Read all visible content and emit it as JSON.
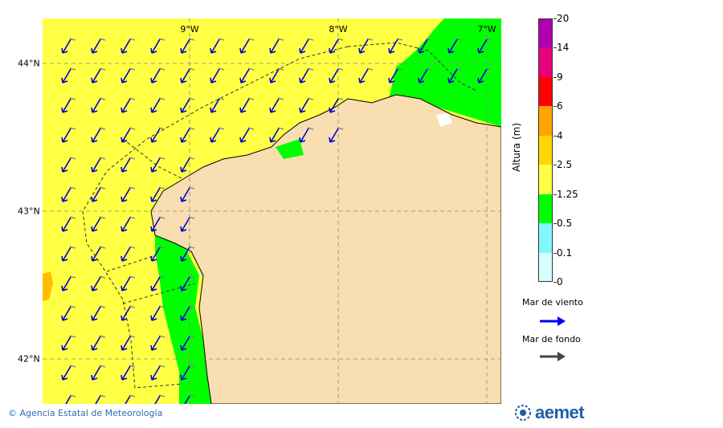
{
  "map": {
    "lon_labels": [
      "9°W",
      "8°W",
      "7°W"
    ],
    "lat_labels": [
      "44°N",
      "43°N",
      "42°N"
    ],
    "colors": {
      "sea_yellow": "#ffff44",
      "sea_green": "#00ff00",
      "sea_light_blue": "#80f8ff",
      "land": "#f8deb0",
      "orange_patch": "#ffbf00",
      "wind_arrow": "#0000d0",
      "swell_arrow": "#808080"
    }
  },
  "legend": {
    "title": "Altura (m)",
    "levels": [
      "20",
      "14",
      "9",
      "6",
      "4",
      "2.5",
      "1.25",
      "0.5",
      "0.1",
      "0"
    ],
    "colors": [
      "#b000b0",
      "#e8007a",
      "#ff0000",
      "#ffa500",
      "#ffd700",
      "#ffff44",
      "#00ff00",
      "#80f8ff",
      "#d8ffff"
    ],
    "wind_sea_label": "Mar de viento",
    "swell_label": "Mar de fondo",
    "wind_sea_color": "#0000ee",
    "swell_color": "#444444"
  },
  "footer": {
    "credit": "© Agencia Estatal de Meteorología",
    "logo_text": "aemet"
  }
}
